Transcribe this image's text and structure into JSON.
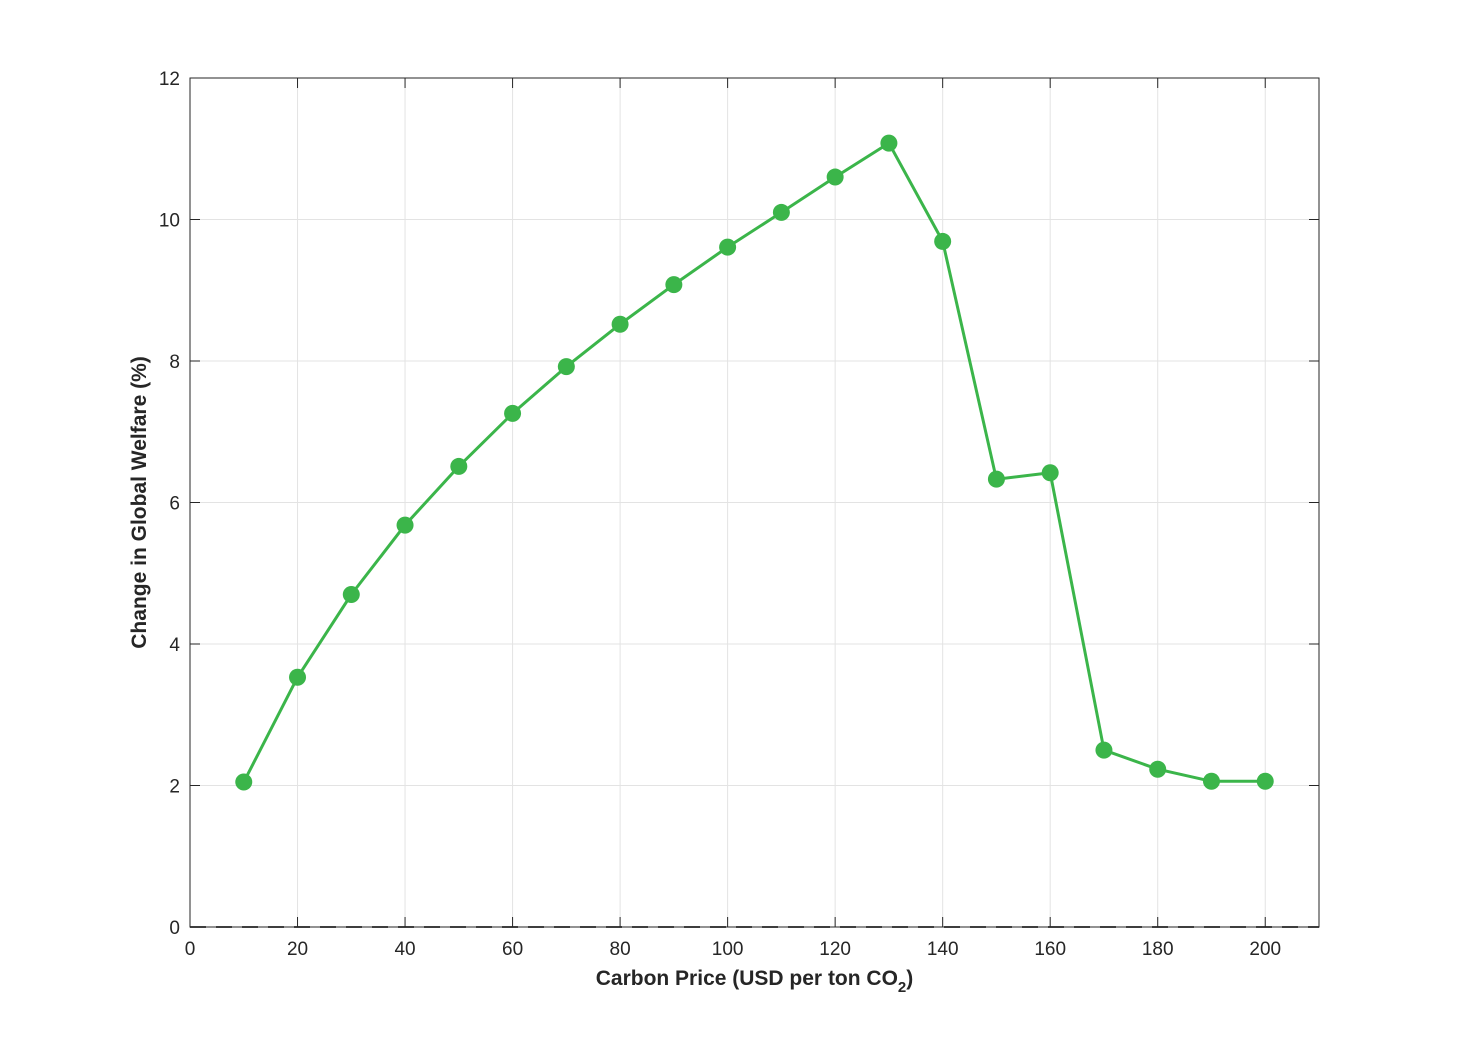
{
  "chart_data": {
    "type": "line",
    "xlabel": "Carbon Price (USD per ton CO",
    "xlabel_subscript": "2",
    "xlabel_suffix": ")",
    "ylabel": "Change in Global Welfare (%)",
    "xlim": [
      0,
      210
    ],
    "ylim": [
      0,
      12
    ],
    "x_ticks": [
      0,
      20,
      40,
      60,
      80,
      100,
      120,
      140,
      160,
      180,
      200
    ],
    "y_ticks": [
      0,
      2,
      4,
      6,
      8,
      10,
      12
    ],
    "grid": true,
    "reference_line": {
      "y": 0,
      "style": "dashed",
      "color": "#555555"
    },
    "series": [
      {
        "color": "#3bb54a",
        "marker": "circle",
        "x": [
          10,
          20,
          30,
          40,
          50,
          60,
          70,
          80,
          90,
          100,
          110,
          120,
          130,
          140,
          150,
          160,
          170,
          180,
          190,
          200
        ],
        "values": [
          2.05,
          3.53,
          4.7,
          5.68,
          6.51,
          7.26,
          7.92,
          8.52,
          9.08,
          9.61,
          10.1,
          10.6,
          11.08,
          9.69,
          6.33,
          6.42,
          2.5,
          2.23,
          2.06,
          2.06
        ]
      }
    ]
  }
}
